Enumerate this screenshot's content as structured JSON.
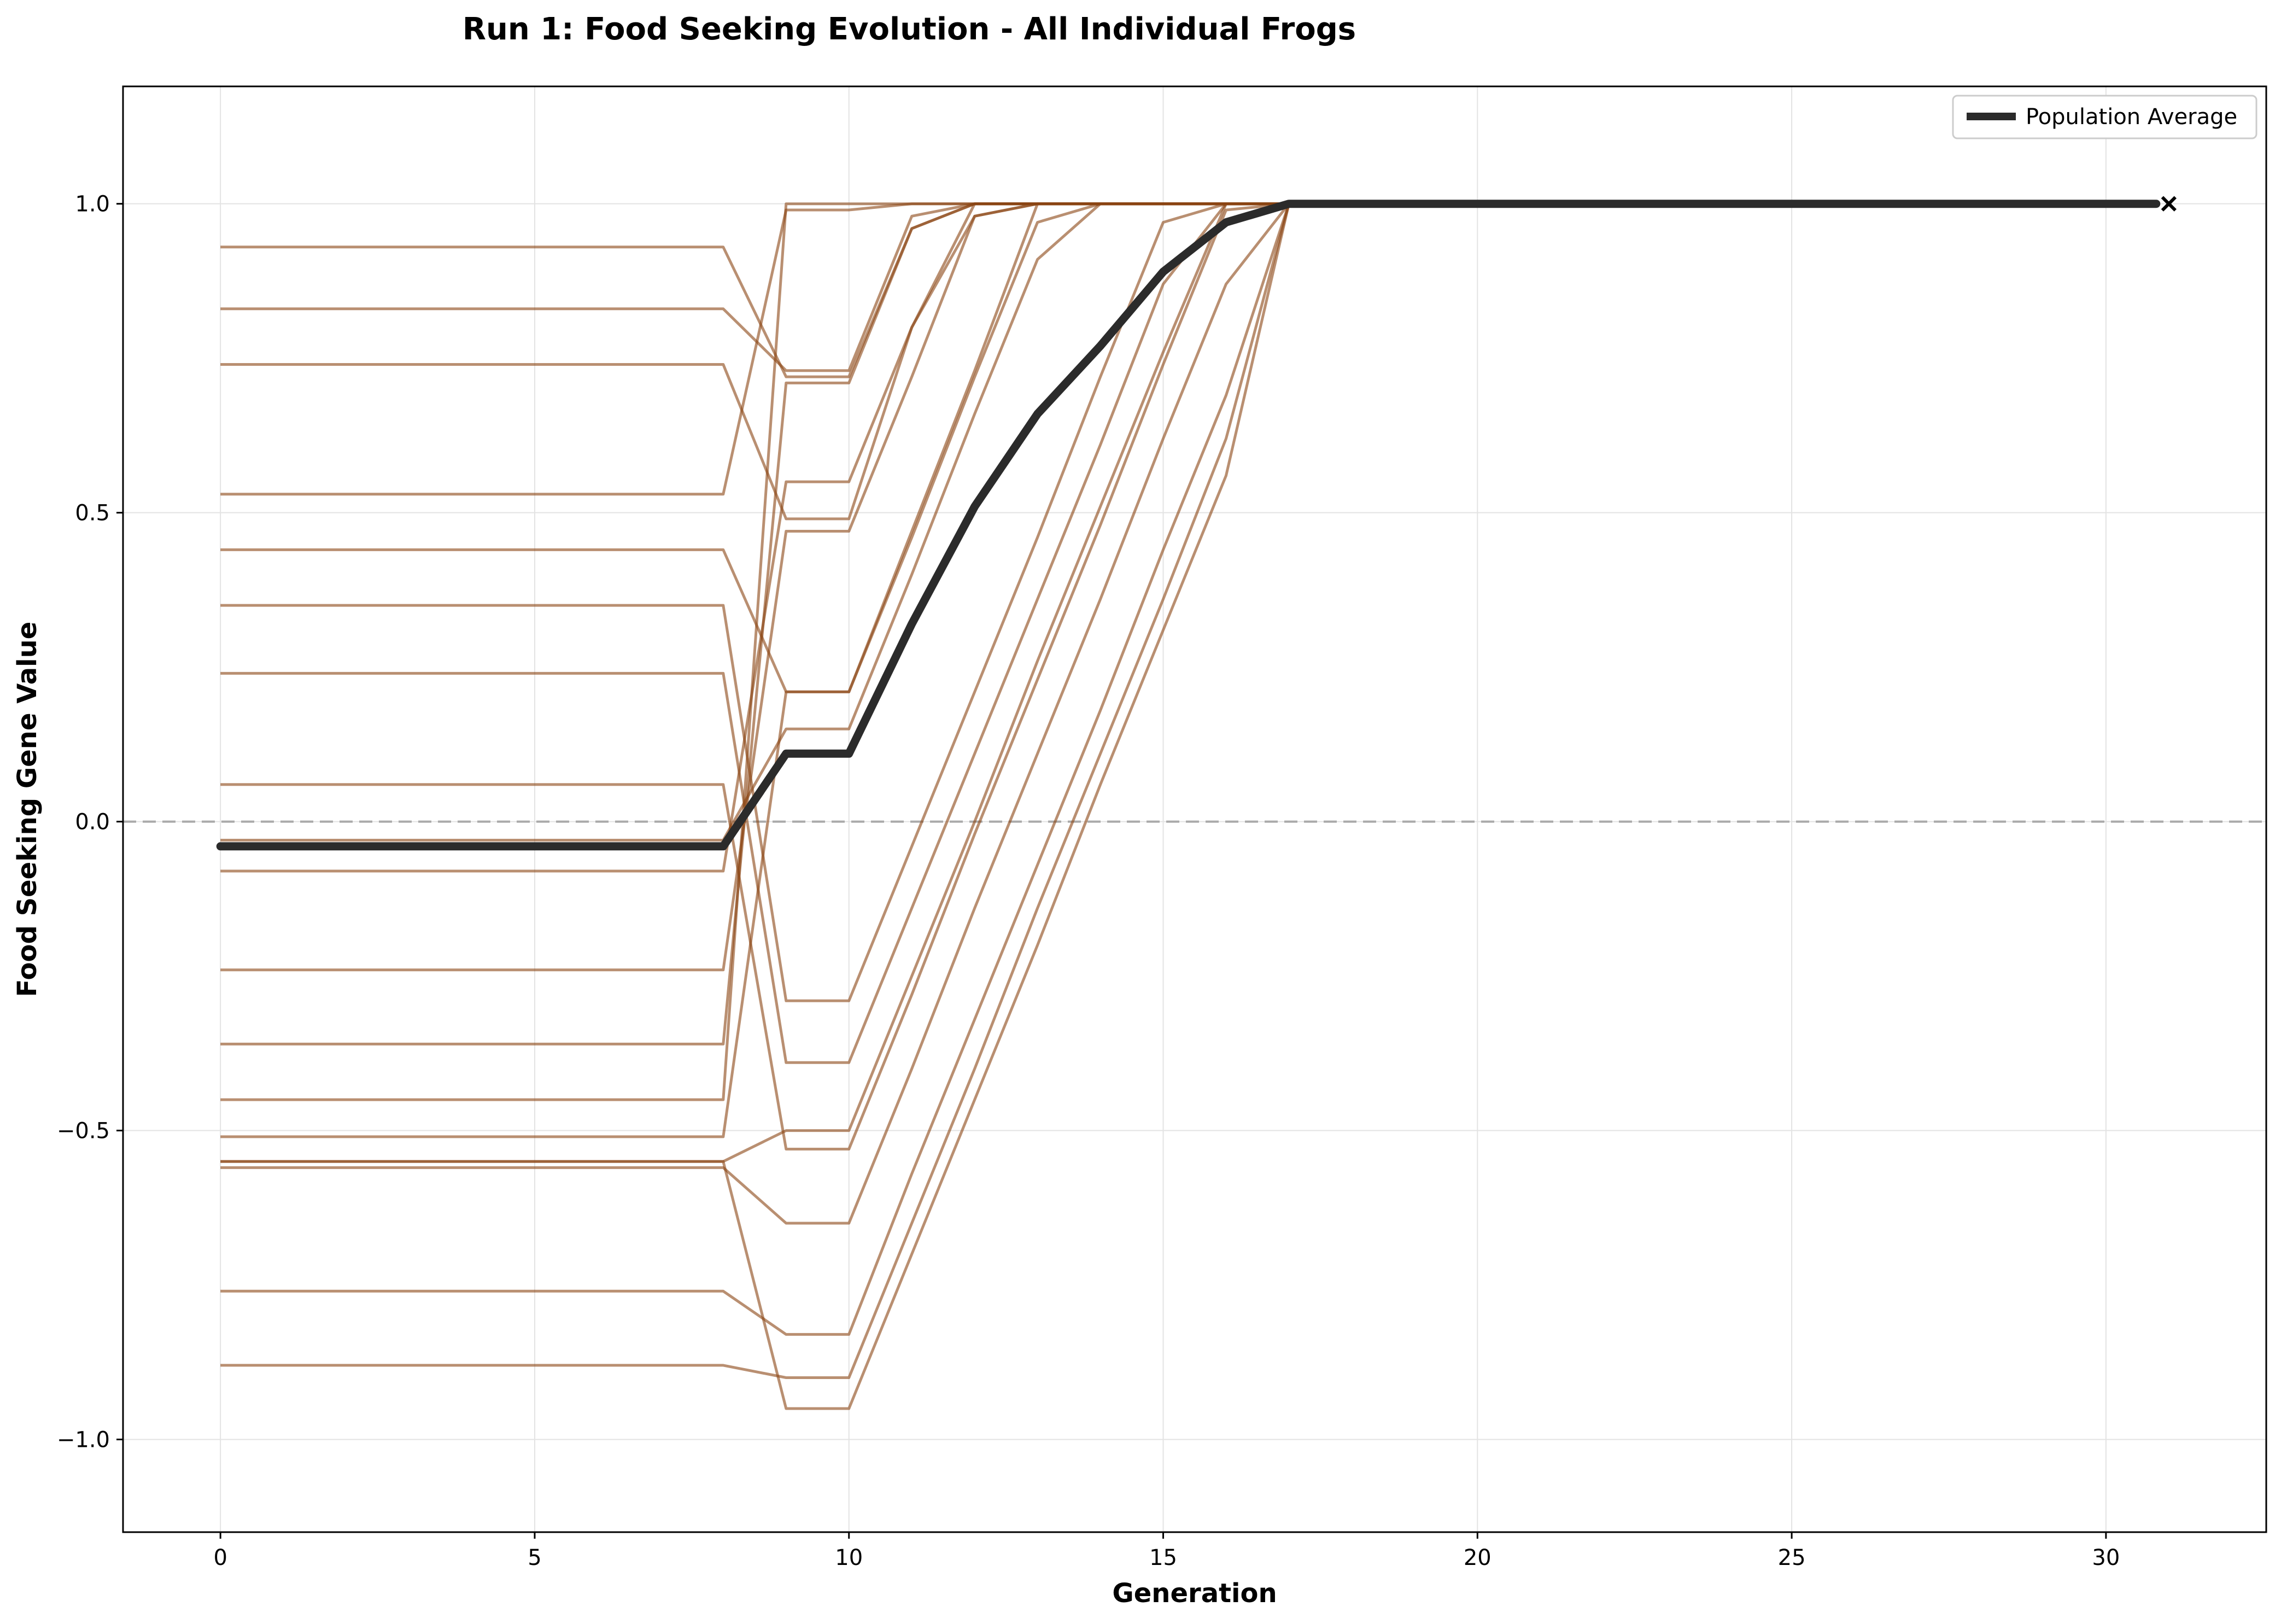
{
  "chart_data": {
    "type": "line",
    "title": "Run 1: Food Seeking Evolution - All Individual Frogs",
    "xlabel": "Generation",
    "ylabel": "Food Seeking Gene Value",
    "xlim": [
      -1.55,
      32.55
    ],
    "ylim": [
      -1.15,
      1.19
    ],
    "xticks": [
      0,
      5,
      10,
      15,
      20,
      25,
      30
    ],
    "yticks": [
      -1.0,
      -0.5,
      0.0,
      0.5,
      1.0
    ],
    "ytick_labels": [
      "−1.0",
      "−0.5",
      "0.0",
      "0.5",
      "1.0"
    ],
    "grid": true,
    "reference_line": {
      "y": 0.0,
      "style": "dashed",
      "color": "#aaaaaa"
    },
    "individual_color": "#8B4513",
    "average_color": "#2b2b2b",
    "legend": {
      "position": "top-right",
      "entries": [
        "Population Average"
      ]
    },
    "end_marker": {
      "x": 31,
      "y": 1.0,
      "symbol": "×"
    },
    "individuals": [
      {
        "x": [
          0,
          8,
          9,
          10,
          11,
          12,
          13,
          14,
          15,
          16,
          17
        ],
        "y": [
          0.93,
          0.93,
          0.72,
          0.72,
          0.96,
          1.0,
          1.0,
          1.0,
          1.0,
          1.0,
          1.0
        ]
      },
      {
        "x": [
          0,
          8,
          9,
          10,
          11,
          12,
          13,
          14,
          15,
          16,
          17
        ],
        "y": [
          0.83,
          0.83,
          0.73,
          0.73,
          0.98,
          1.0,
          1.0,
          1.0,
          1.0,
          1.0,
          1.0
        ]
      },
      {
        "x": [
          0,
          8,
          9,
          10,
          11,
          12,
          13,
          14,
          15,
          16,
          17
        ],
        "y": [
          0.74,
          0.74,
          0.49,
          0.49,
          0.8,
          1.0,
          1.0,
          1.0,
          1.0,
          1.0,
          1.0
        ]
      },
      {
        "x": [
          0,
          8,
          9,
          10,
          11,
          12,
          13,
          14,
          15,
          16,
          17
        ],
        "y": [
          0.53,
          0.53,
          0.99,
          0.99,
          1.0,
          1.0,
          1.0,
          1.0,
          1.0,
          1.0,
          1.0
        ]
      },
      {
        "x": [
          0,
          8,
          9,
          10,
          11,
          12,
          13,
          14,
          15,
          16,
          17
        ],
        "y": [
          0.44,
          0.44,
          0.21,
          0.21,
          0.47,
          0.73,
          1.0,
          1.0,
          1.0,
          1.0,
          1.0
        ]
      },
      {
        "x": [
          0,
          8,
          9,
          10,
          11,
          12,
          13,
          14,
          15,
          16,
          17
        ],
        "y": [
          0.35,
          0.35,
          -0.29,
          -0.29,
          -0.04,
          0.21,
          0.46,
          0.72,
          0.97,
          1.0,
          1.0
        ]
      },
      {
        "x": [
          0,
          8,
          9,
          10,
          11,
          12,
          13,
          14,
          15,
          16,
          17
        ],
        "y": [
          0.24,
          0.24,
          -0.39,
          -0.39,
          -0.14,
          0.11,
          0.36,
          0.61,
          0.87,
          1.0,
          1.0
        ]
      },
      {
        "x": [
          0,
          8,
          9,
          10,
          11,
          12,
          13,
          14,
          15,
          16,
          17
        ],
        "y": [
          0.06,
          0.06,
          -0.53,
          -0.53,
          -0.28,
          -0.02,
          0.23,
          0.48,
          0.74,
          0.99,
          1.0
        ]
      },
      {
        "x": [
          0,
          8,
          9,
          10,
          11,
          12,
          13,
          14,
          15,
          16,
          17
        ],
        "y": [
          -0.03,
          -0.03,
          0.15,
          0.15,
          0.4,
          0.66,
          0.91,
          1.0,
          1.0,
          1.0,
          1.0
        ]
      },
      {
        "x": [
          0,
          8,
          9,
          10,
          11,
          12,
          13,
          14,
          15,
          16,
          17
        ],
        "y": [
          -0.08,
          -0.08,
          0.55,
          0.55,
          0.8,
          0.98,
          1.0,
          1.0,
          1.0,
          1.0,
          1.0
        ]
      },
      {
        "x": [
          0,
          8,
          9,
          10,
          11,
          12,
          13,
          14,
          15,
          16,
          17
        ],
        "y": [
          -0.24,
          -0.24,
          0.47,
          0.47,
          0.72,
          0.98,
          1.0,
          1.0,
          1.0,
          1.0,
          1.0
        ]
      },
      {
        "x": [
          0,
          8,
          9,
          10,
          11,
          12,
          13,
          14,
          15,
          16,
          17
        ],
        "y": [
          -0.36,
          -0.36,
          0.71,
          0.71,
          0.96,
          1.0,
          1.0,
          1.0,
          1.0,
          1.0,
          1.0
        ]
      },
      {
        "x": [
          0,
          8,
          9,
          10,
          11,
          12,
          13,
          14,
          15,
          16,
          17
        ],
        "y": [
          -0.45,
          -0.45,
          1.0,
          1.0,
          1.0,
          1.0,
          1.0,
          1.0,
          1.0,
          1.0,
          1.0
        ]
      },
      {
        "x": [
          0,
          8,
          9,
          10,
          11,
          12,
          13,
          14,
          15,
          16,
          17
        ],
        "y": [
          -0.51,
          -0.51,
          0.21,
          0.21,
          0.46,
          0.72,
          0.97,
          1.0,
          1.0,
          1.0,
          1.0
        ]
      },
      {
        "x": [
          0,
          8,
          9,
          10,
          11,
          12,
          13,
          14,
          15,
          16,
          17
        ],
        "y": [
          -0.55,
          -0.55,
          -0.5,
          -0.5,
          -0.25,
          0.0,
          0.26,
          0.51,
          0.76,
          1.0,
          1.0
        ]
      },
      {
        "x": [
          0,
          8,
          9,
          10,
          11,
          12,
          13,
          14,
          15,
          16,
          17
        ],
        "y": [
          -0.56,
          -0.56,
          -0.65,
          -0.65,
          -0.4,
          -0.14,
          0.11,
          0.36,
          0.62,
          0.87,
          1.0
        ]
      },
      {
        "x": [
          0,
          8,
          9,
          10,
          11,
          12,
          13,
          14,
          15,
          16,
          17
        ],
        "y": [
          -0.76,
          -0.76,
          -0.83,
          -0.83,
          -0.57,
          -0.32,
          -0.07,
          0.18,
          0.44,
          0.69,
          1.0
        ]
      },
      {
        "x": [
          0,
          8,
          9,
          10,
          11,
          12,
          13,
          14,
          15,
          16,
          17
        ],
        "y": [
          -0.88,
          -0.88,
          -0.9,
          -0.9,
          -0.65,
          -0.4,
          -0.14,
          0.11,
          0.36,
          0.62,
          1.0
        ]
      },
      {
        "x": [
          0,
          8,
          9,
          10,
          11,
          12,
          13,
          14,
          15,
          16,
          17
        ],
        "y": [
          -0.55,
          -0.55,
          -0.95,
          -0.95,
          -0.7,
          -0.45,
          -0.2,
          0.06,
          0.31,
          0.56,
          1.0
        ]
      }
    ],
    "average": {
      "name": "Population Average",
      "x": [
        0,
        8,
        9,
        10,
        11,
        12,
        13,
        14,
        15,
        16,
        17,
        18,
        20,
        25,
        30,
        30.8
      ],
      "y": [
        -0.04,
        -0.04,
        0.11,
        0.11,
        0.32,
        0.51,
        0.66,
        0.77,
        0.89,
        0.97,
        1.0,
        1.0,
        1.0,
        1.0,
        1.0,
        1.0
      ]
    }
  }
}
